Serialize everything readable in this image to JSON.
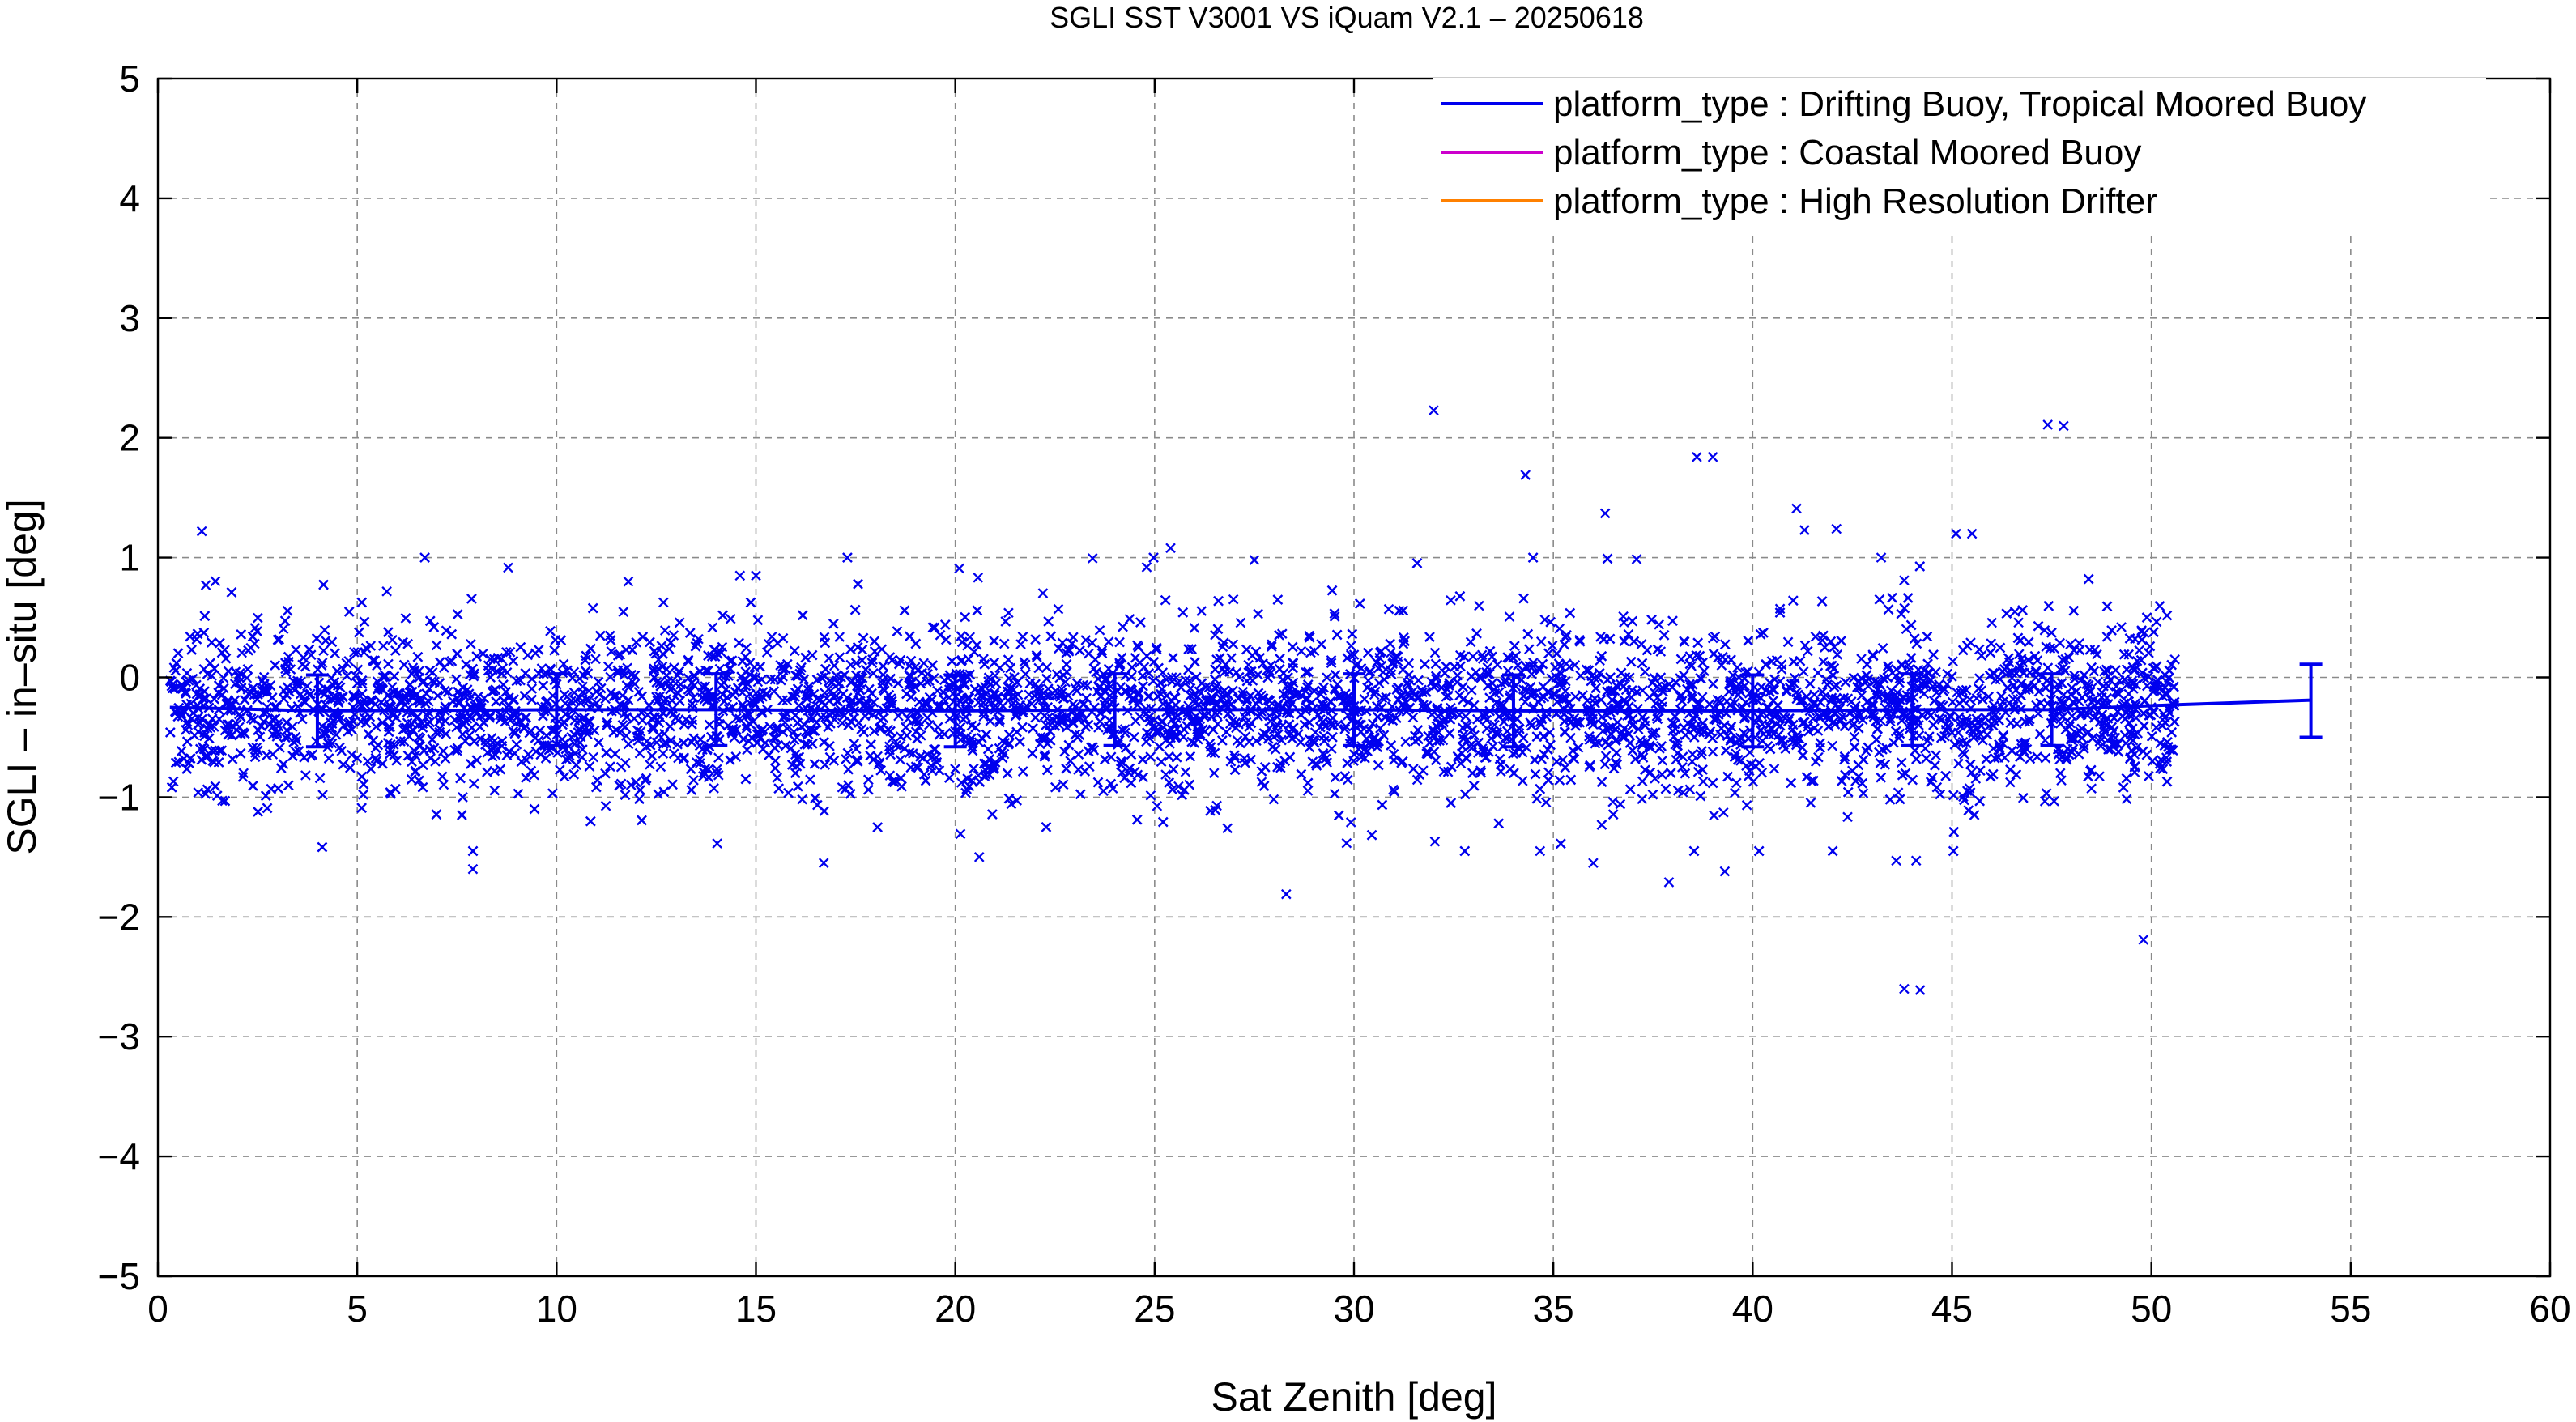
{
  "chart_data": {
    "type": "scatter",
    "title": "SGLI SST V3001 VS iQuam V2.1  – 20250618",
    "xlabel": "Sat Zenith [deg]",
    "ylabel": "SGLI – in–situ [deg]",
    "xlim": [
      0,
      60
    ],
    "ylim": [
      -5,
      5
    ],
    "x_ticks": [
      "0",
      "5",
      "10",
      "15",
      "20",
      "25",
      "30",
      "35",
      "40",
      "45",
      "50",
      "55",
      "60"
    ],
    "y_ticks": [
      "5",
      "4",
      "3",
      "2",
      "1",
      "0",
      "−1",
      "−2",
      "−3",
      "−4",
      "−5"
    ],
    "grid": true,
    "legend_position": "top-right",
    "legend": [
      {
        "label": "platform_type : Drifting Buoy, Tropical Moored Buoy",
        "color": "#0000ee"
      },
      {
        "label": "platform_type : Coastal Moored Buoy",
        "color": "#cc00cc"
      },
      {
        "label": "platform_type : High Resolution Drifter",
        "color": "#ff8000"
      }
    ],
    "point_marker": "×",
    "point_color": "#0000ee",
    "points_density": {
      "x_range": [
        0.3,
        50.6
      ],
      "approx_count": 6500,
      "center_y": -0.27,
      "spread_y": 0.33
    },
    "outlier_points": [
      {
        "x": 1.1,
        "y": 1.22
      },
      {
        "x": 1.2,
        "y": 0.77
      },
      {
        "x": 7.9,
        "y": -1.6
      },
      {
        "x": 11.8,
        "y": 0.8
      },
      {
        "x": 14.6,
        "y": 0.85
      },
      {
        "x": 15.0,
        "y": 0.85
      },
      {
        "x": 16.7,
        "y": -1.55
      },
      {
        "x": 20.1,
        "y": 0.91
      },
      {
        "x": 20.6,
        "y": -1.5
      },
      {
        "x": 25.4,
        "y": 1.08
      },
      {
        "x": 24.8,
        "y": 0.92
      },
      {
        "x": 27.5,
        "y": 0.98
      },
      {
        "x": 28.3,
        "y": -1.81
      },
      {
        "x": 32.0,
        "y": 2.23
      },
      {
        "x": 34.3,
        "y": 1.69
      },
      {
        "x": 36.3,
        "y": 1.37
      },
      {
        "x": 37.9,
        "y": -1.71
      },
      {
        "x": 38.6,
        "y": 1.84
      },
      {
        "x": 39.0,
        "y": 1.84
      },
      {
        "x": 39.3,
        "y": -1.62
      },
      {
        "x": 41.1,
        "y": 1.41
      },
      {
        "x": 41.3,
        "y": 1.23
      },
      {
        "x": 42.1,
        "y": 1.24
      },
      {
        "x": 43.8,
        "y": 0.81
      },
      {
        "x": 43.8,
        "y": -2.6
      },
      {
        "x": 44.2,
        "y": -2.61
      },
      {
        "x": 45.1,
        "y": 1.2
      },
      {
        "x": 45.5,
        "y": 1.2
      },
      {
        "x": 47.4,
        "y": 2.11
      },
      {
        "x": 47.8,
        "y": 2.1
      },
      {
        "x": 49.8,
        "y": -2.19
      },
      {
        "x": 36.0,
        "y": -1.55
      },
      {
        "x": 43.6,
        "y": -1.53
      },
      {
        "x": 44.1,
        "y": -1.53
      }
    ],
    "series": [
      {
        "name": "platform_type : Drifting Buoy, Tropical Moored Buoy",
        "color": "#0000ee",
        "x": [
          0.3,
          4,
          10,
          14,
          20,
          24,
          30,
          34,
          40,
          44,
          47.5,
          50.5,
          54
        ],
        "y": [
          -0.25,
          -0.28,
          -0.27,
          -0.27,
          -0.28,
          -0.27,
          -0.27,
          -0.28,
          -0.28,
          -0.27,
          -0.27,
          -0.23,
          -0.19
        ],
        "errorbars": [
          {
            "x": 4,
            "low": -0.58,
            "high": 0.02
          },
          {
            "x": 10,
            "low": -0.57,
            "high": 0.03
          },
          {
            "x": 14,
            "low": -0.57,
            "high": 0.03
          },
          {
            "x": 20,
            "low": -0.58,
            "high": 0.02
          },
          {
            "x": 24,
            "low": -0.57,
            "high": 0.03
          },
          {
            "x": 30,
            "low": -0.57,
            "high": 0.03
          },
          {
            "x": 34,
            "low": -0.58,
            "high": 0.02
          },
          {
            "x": 40,
            "low": -0.58,
            "high": 0.02
          },
          {
            "x": 44,
            "low": -0.57,
            "high": 0.03
          },
          {
            "x": 47.5,
            "low": -0.57,
            "high": 0.03
          },
          {
            "x": 54,
            "low": -0.5,
            "high": 0.11
          }
        ]
      }
    ]
  }
}
